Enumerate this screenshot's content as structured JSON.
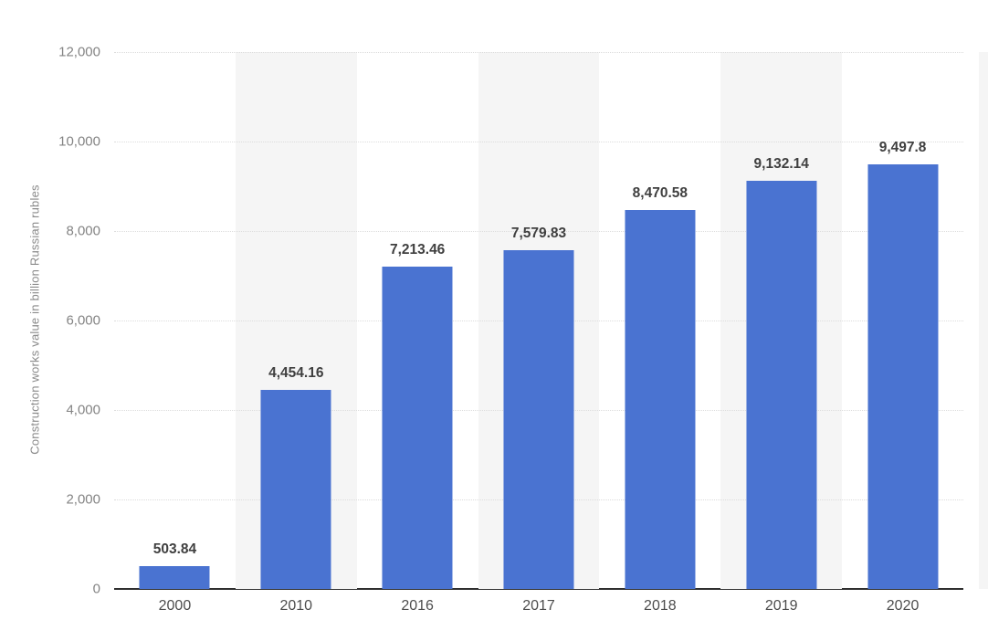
{
  "chart_data": {
    "type": "bar",
    "categories": [
      "2000",
      "2010",
      "2016",
      "2017",
      "2018",
      "2019",
      "2020"
    ],
    "values": [
      503.84,
      4454.16,
      7213.46,
      7579.83,
      8470.58,
      9132.14,
      9497.8
    ],
    "value_labels": [
      "503.84",
      "4,454.16",
      "7,213.46",
      "7,579.83",
      "8,470.58",
      "9,132.14",
      "9,497.8"
    ],
    "title": "",
    "xlabel": "",
    "ylabel": "Construction works value in billion Russian rubles",
    "ylim": [
      0,
      12000
    ],
    "yticks": [
      0,
      2000,
      4000,
      6000,
      8000,
      10000,
      12000
    ],
    "ytick_labels": [
      "0",
      "2,000",
      "4,000",
      "6,000",
      "8,000",
      "10,000",
      "12,000"
    ],
    "grid": true,
    "legend": false,
    "bar_color": "#4a73d1",
    "band_color": "#f5f5f5",
    "shaded_band_indices": [
      1,
      3,
      5
    ]
  }
}
